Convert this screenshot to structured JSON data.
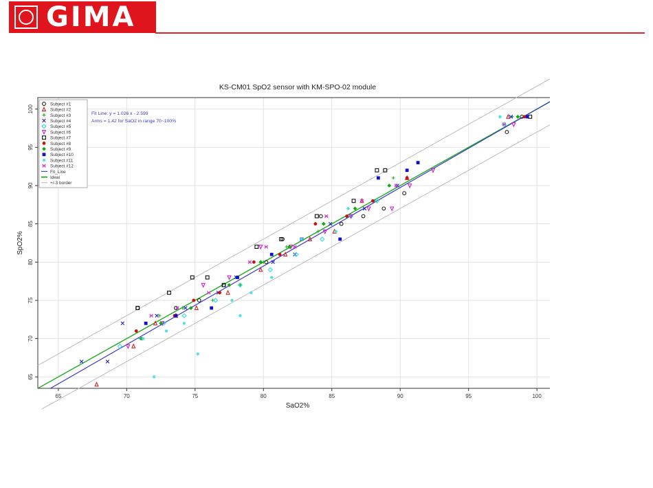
{
  "header": {
    "brand_name": "GIMA",
    "colors": {
      "brand": "#e0141c",
      "rule": "#d8282e"
    },
    "logo_icon": "cross-seal-icon"
  },
  "chart_data": {
    "type": "scatter",
    "title": "KS-CM01 SpO2 sensor with KM-SPO-02 module",
    "xlabel": "SaO2%",
    "ylabel": "SpO2%",
    "xlim": [
      63.5,
      101.5
    ],
    "ylim": [
      63.5,
      101.5
    ],
    "xticks": [
      65,
      70,
      75,
      80,
      85,
      90,
      95,
      100
    ],
    "yticks": [
      65,
      70,
      75,
      80,
      85,
      90,
      95,
      100
    ],
    "grid": true,
    "legend_placement": "top-left",
    "annotations": [
      "Fit Line: y = 1.026 x - 2.599",
      "Arms = 1.42 for SaO2 in range 70~100%"
    ],
    "lines": [
      {
        "name": "Fit_Line",
        "color": "#3a3ac8",
        "slope": 1.026,
        "intercept": -2.599
      },
      {
        "name": "Ideal",
        "color": "#22a822",
        "slope": 1,
        "intercept": 0
      },
      {
        "name": "+/-3 border",
        "color": "#bbbbbb",
        "offsets": [
          3,
          -3
        ]
      }
    ],
    "series": [
      {
        "name": "Subject #1",
        "color": "#222222",
        "marker": "circle",
        "points": [
          [
            70.8,
            74
          ],
          [
            73.6,
            74
          ],
          [
            75.3,
            75
          ],
          [
            77.1,
            77
          ],
          [
            80.2,
            80
          ],
          [
            81.4,
            83
          ],
          [
            84.2,
            86
          ],
          [
            85.7,
            85
          ],
          [
            87.3,
            86
          ],
          [
            88.8,
            87
          ],
          [
            90.3,
            89
          ],
          [
            97.8,
            97
          ],
          [
            98.9,
            99
          ]
        ]
      },
      {
        "name": "Subject #2",
        "color": "#cc2222",
        "marker": "triangle",
        "points": [
          [
            67.8,
            64
          ],
          [
            70.5,
            69
          ],
          [
            72.1,
            72
          ],
          [
            73.6,
            73
          ],
          [
            75.1,
            74
          ],
          [
            77.4,
            76
          ],
          [
            79.8,
            79
          ],
          [
            81.6,
            81
          ],
          [
            83.4,
            83
          ],
          [
            85.2,
            84
          ],
          [
            87.2,
            88
          ],
          [
            90.5,
            91
          ],
          [
            97.9,
            99
          ]
        ]
      },
      {
        "name": "Subject #3",
        "color": "#22aa22",
        "marker": "plus",
        "points": [
          [
            71.0,
            70
          ],
          [
            72.4,
            73
          ],
          [
            74.1,
            74
          ],
          [
            76.3,
            75
          ],
          [
            78.3,
            77
          ],
          [
            80.0,
            80
          ],
          [
            81.7,
            82
          ],
          [
            84.0,
            84
          ],
          [
            86.2,
            86
          ],
          [
            88.1,
            88
          ],
          [
            89.5,
            91
          ],
          [
            98.2,
            99
          ]
        ]
      },
      {
        "name": "Subject #4",
        "color": "#2222cc",
        "marker": "x",
        "points": [
          [
            66.7,
            67
          ],
          [
            68.6,
            67
          ],
          [
            69.7,
            72
          ],
          [
            72.2,
            73
          ],
          [
            74.3,
            74
          ],
          [
            76.7,
            76
          ],
          [
            78.0,
            78
          ],
          [
            80.7,
            80
          ],
          [
            82.3,
            81
          ],
          [
            84.9,
            85
          ],
          [
            87.4,
            87
          ],
          [
            89.8,
            90
          ],
          [
            98.1,
            99
          ]
        ]
      },
      {
        "name": "Subject #5",
        "color": "#33dddd",
        "marker": "diamond",
        "points": [
          [
            69.5,
            69
          ],
          [
            72.7,
            72
          ],
          [
            74.2,
            73
          ],
          [
            76.5,
            75
          ],
          [
            78.3,
            77
          ],
          [
            80.5,
            79
          ],
          [
            82.4,
            81
          ],
          [
            84.3,
            83
          ],
          [
            86.4,
            86
          ],
          [
            88.3,
            88
          ],
          [
            97.6,
            98
          ]
        ]
      },
      {
        "name": "Subject #6",
        "color": "#cc22cc",
        "marker": "triangle-down",
        "points": [
          [
            70.1,
            69
          ],
          [
            72.6,
            72
          ],
          [
            75.6,
            77
          ],
          [
            77.5,
            78
          ],
          [
            79.8,
            82
          ],
          [
            82.0,
            82
          ],
          [
            84.5,
            84
          ],
          [
            86.4,
            86
          ],
          [
            87.7,
            87
          ],
          [
            89.4,
            87
          ],
          [
            90.7,
            90
          ],
          [
            92.4,
            92
          ],
          [
            98.3,
            98
          ]
        ]
      },
      {
        "name": "Subject #7",
        "color": "#111111",
        "marker": "square",
        "points": [
          [
            70.8,
            74
          ],
          [
            73.1,
            76
          ],
          [
            74.8,
            78
          ],
          [
            75.9,
            78
          ],
          [
            77.1,
            77
          ],
          [
            79.5,
            82
          ],
          [
            81.3,
            83
          ],
          [
            83.9,
            86
          ],
          [
            86.6,
            88
          ],
          [
            88.3,
            92
          ],
          [
            88.9,
            92
          ],
          [
            99.5,
            99
          ]
        ]
      },
      {
        "name": "Subject #8",
        "color": "#cc1111",
        "marker": "circle-filled",
        "points": [
          [
            70.7,
            71
          ],
          [
            73.5,
            73
          ],
          [
            74.9,
            75
          ],
          [
            76.8,
            76
          ],
          [
            79.3,
            80
          ],
          [
            81.2,
            81
          ],
          [
            83.8,
            85
          ],
          [
            86.1,
            86
          ],
          [
            88.0,
            88
          ],
          [
            90.5,
            91
          ],
          [
            99.1,
            99
          ]
        ]
      },
      {
        "name": "Subject #9",
        "color": "#11aa11",
        "marker": "diamond-filled",
        "points": [
          [
            71.1,
            70
          ],
          [
            72.5,
            72
          ],
          [
            74.7,
            74
          ],
          [
            77.5,
            77
          ],
          [
            79.8,
            80
          ],
          [
            81.9,
            82
          ],
          [
            84.4,
            85
          ],
          [
            86.7,
            87
          ],
          [
            89.2,
            90
          ],
          [
            98.6,
            99
          ]
        ]
      },
      {
        "name": "Subject #10",
        "color": "#1111cc",
        "marker": "square-filled",
        "points": [
          [
            71.4,
            72
          ],
          [
            73.6,
            73
          ],
          [
            76.2,
            74
          ],
          [
            78.1,
            78
          ],
          [
            80.6,
            81
          ],
          [
            82.8,
            83
          ],
          [
            85.6,
            83
          ],
          [
            88.4,
            91
          ],
          [
            90.5,
            92
          ],
          [
            91.3,
            93
          ],
          [
            99.3,
            99
          ]
        ]
      },
      {
        "name": "Subject #11",
        "color": "#55dddd",
        "marker": "star",
        "points": [
          [
            71.2,
            70
          ],
          [
            72.0,
            65
          ],
          [
            72.9,
            71
          ],
          [
            74.2,
            72
          ],
          [
            75.2,
            68
          ],
          [
            77.7,
            75
          ],
          [
            78.3,
            73
          ],
          [
            79.1,
            76
          ],
          [
            80.6,
            78
          ],
          [
            82.8,
            83
          ],
          [
            85.3,
            84
          ],
          [
            86.2,
            87
          ],
          [
            97.3,
            99
          ]
        ]
      },
      {
        "name": "Subject #12",
        "color": "#cc44cc",
        "marker": "cross-bar",
        "points": [
          [
            71.8,
            73
          ],
          [
            73.7,
            74
          ],
          [
            76.0,
            76
          ],
          [
            79.0,
            80
          ],
          [
            80.2,
            82
          ],
          [
            82.3,
            82
          ],
          [
            84.6,
            86
          ],
          [
            87.2,
            88
          ],
          [
            89.7,
            90
          ],
          [
            97.6,
            98
          ]
        ]
      }
    ]
  }
}
